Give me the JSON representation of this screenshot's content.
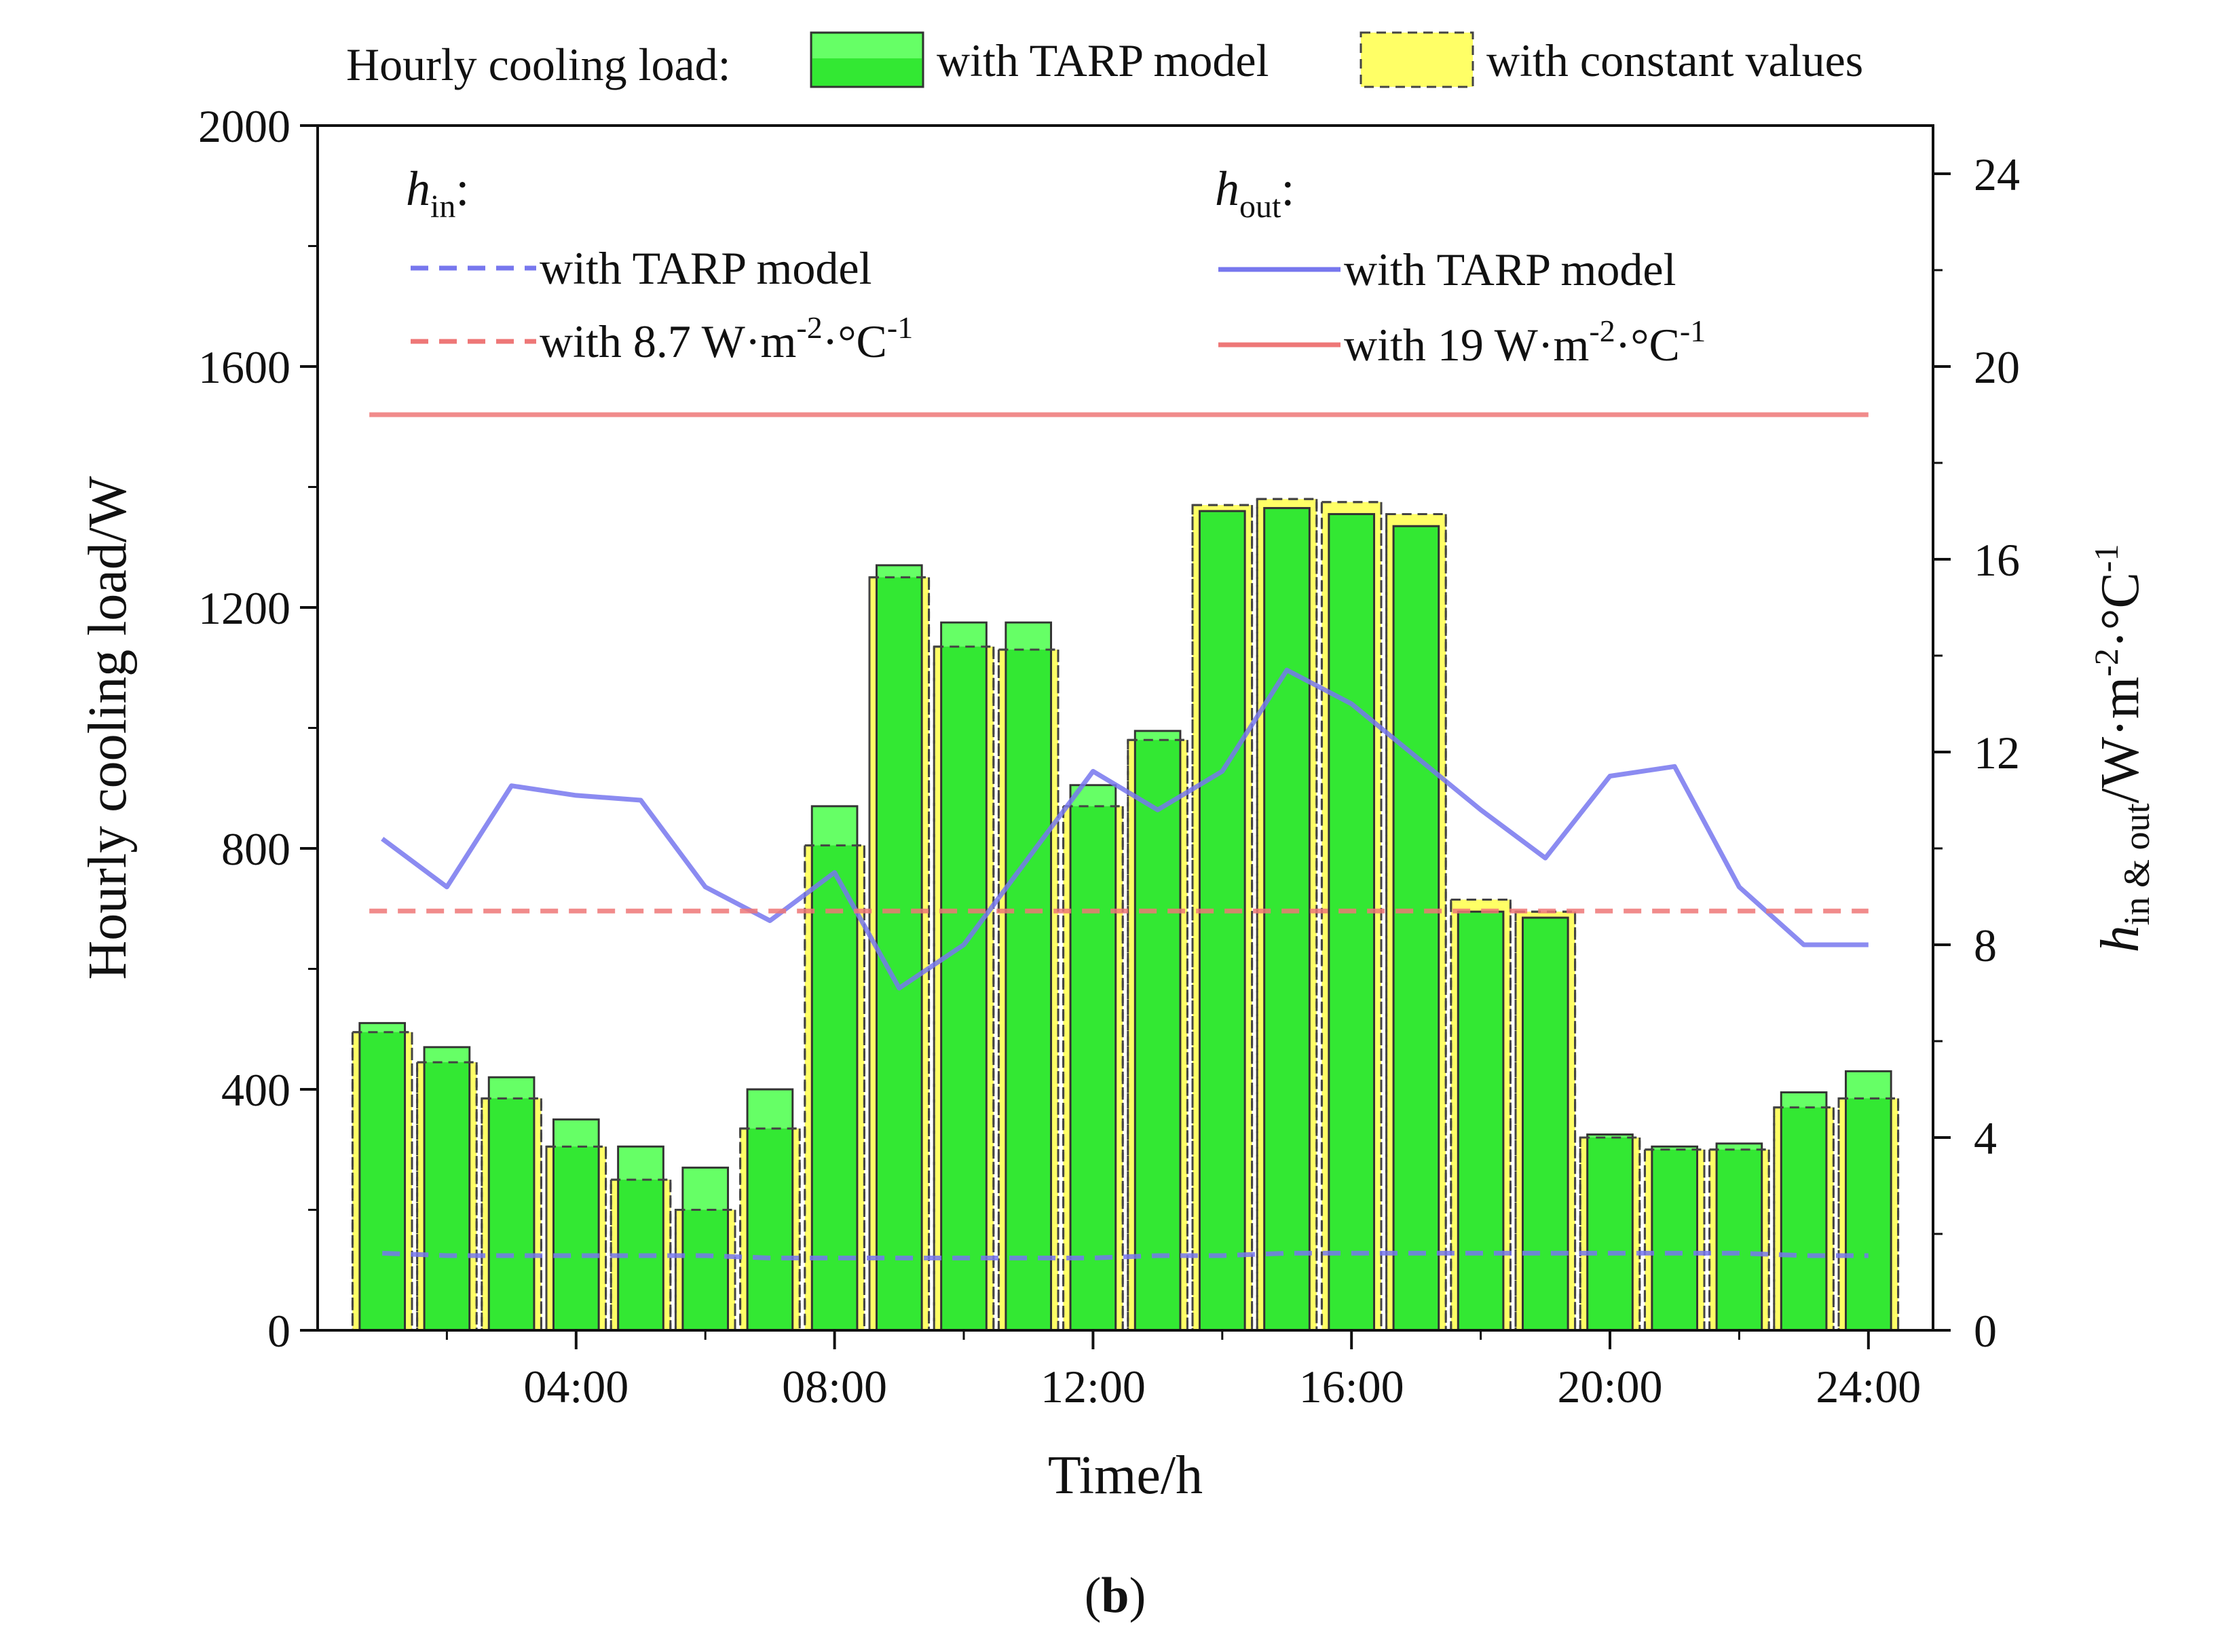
{
  "chart_data": {
    "type": "bar",
    "caption": "(b)",
    "xlabel": "Time/h",
    "ylabel_left": "Hourly cooling load/W",
    "ylabel_right": {
      "h": "h",
      "sub": "in & out",
      "unit": "/W·m",
      "exp": "-2",
      "deg": "·°C",
      "exp2": "-1"
    },
    "ylim_left": [
      0,
      2000
    ],
    "ylim_right": [
      0,
      25
    ],
    "left_ticks": [
      "0",
      "400",
      "800",
      "1200",
      "1600",
      "2000"
    ],
    "right_ticks": [
      "0",
      "4",
      "8",
      "12",
      "16",
      "20",
      "24"
    ],
    "x_range": [
      0,
      25
    ],
    "x_ticks": [
      {
        "x": 4,
        "label": "04:00"
      },
      {
        "x": 8,
        "label": "08:00"
      },
      {
        "x": 12,
        "label": "12:00"
      },
      {
        "x": 16,
        "label": "16:00"
      },
      {
        "x": 20,
        "label": "20:00"
      },
      {
        "x": 24,
        "label": "24:00"
      }
    ],
    "hours": [
      1,
      2,
      3,
      4,
      5,
      6,
      7,
      8,
      9,
      10,
      11,
      12,
      13,
      14,
      15,
      16,
      17,
      18,
      19,
      20,
      21,
      22,
      23,
      24
    ],
    "bar_series": [
      {
        "name": "with constant values",
        "color": "#ffff66",
        "border": "#444444",
        "values": [
          495,
          445,
          385,
          305,
          250,
          200,
          335,
          805,
          1250,
          1135,
          1130,
          870,
          980,
          1370,
          1380,
          1375,
          1355,
          715,
          695,
          320,
          300,
          300,
          370,
          385
        ]
      },
      {
        "name": "with TARP model",
        "color": "#33e833",
        "light": "#66ff66",
        "border": "#333333",
        "values": [
          510,
          470,
          420,
          350,
          305,
          270,
          400,
          870,
          1270,
          1175,
          1175,
          905,
          995,
          1360,
          1365,
          1355,
          1335,
          695,
          685,
          325,
          305,
          310,
          395,
          430
        ]
      }
    ],
    "line_series": [
      {
        "name": "hout with TARP model",
        "axis": "right",
        "style": "solid",
        "color": "#7777ee",
        "x": [
          1,
          2,
          3,
          4,
          5,
          6,
          7,
          8,
          9,
          10,
          11,
          12,
          13,
          14,
          15,
          16,
          17,
          18,
          19,
          20,
          21,
          22,
          23,
          24
        ],
        "y": [
          10.2,
          9.2,
          11.3,
          11.1,
          11.0,
          9.2,
          8.5,
          9.5,
          7.1,
          8.0,
          9.8,
          11.6,
          10.8,
          11.6,
          13.7,
          13.0,
          11.9,
          10.8,
          9.8,
          11.5,
          11.7,
          9.2,
          8.0,
          8.0
        ]
      },
      {
        "name": "hout with 19 W·m-2·°C-1",
        "axis": "right",
        "style": "solid",
        "color": "#ee7777",
        "x": [
          0.8,
          24
        ],
        "y": [
          19,
          19
        ]
      },
      {
        "name": "hin with TARP model",
        "axis": "right",
        "style": "dashed",
        "color": "#7777ee",
        "x": [
          1,
          2,
          3,
          4,
          5,
          6,
          7,
          8,
          9,
          10,
          11,
          12,
          13,
          14,
          15,
          16,
          17,
          18,
          19,
          20,
          21,
          22,
          23,
          24
        ],
        "y": [
          1.6,
          1.55,
          1.55,
          1.55,
          1.55,
          1.55,
          1.5,
          1.5,
          1.5,
          1.5,
          1.5,
          1.5,
          1.55,
          1.55,
          1.6,
          1.6,
          1.6,
          1.6,
          1.6,
          1.6,
          1.6,
          1.6,
          1.55,
          1.55
        ]
      },
      {
        "name": "hin with 8.7 W·m-2·°C-1",
        "axis": "right",
        "style": "dashed",
        "color": "#ee7777",
        "x": [
          0.8,
          24
        ],
        "y": [
          8.7,
          8.7
        ]
      }
    ],
    "top_legend": {
      "title": "Hourly cooling load:",
      "items": [
        "with TARP model",
        "with constant values"
      ]
    },
    "inner_legend": {
      "hin": {
        "h": "h",
        "sub": "in",
        "suffix": ":"
      },
      "hout": {
        "h": "h",
        "sub": "out",
        "suffix": ":"
      },
      "hin_items": [
        {
          "text": "with TARP model"
        },
        {
          "text": "with 8.7 W·m",
          "sup": "-2",
          "text2": "·°C",
          "sup2": "-1"
        }
      ],
      "hout_items": [
        {
          "text": "with TARP model"
        },
        {
          "text": "with 19 W·m",
          "sup": "-2",
          "text2": "·°C",
          "sup2": "-1"
        }
      ]
    }
  }
}
